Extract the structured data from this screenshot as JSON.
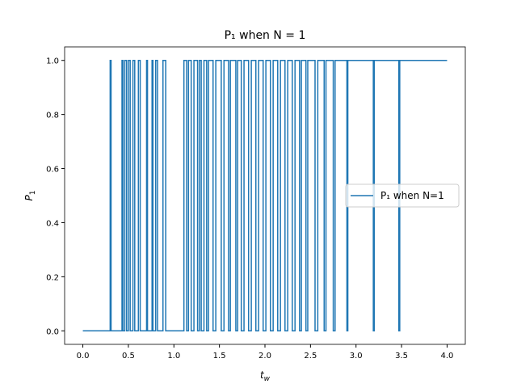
{
  "chart_data": {
    "type": "line",
    "title": "P₁ when N = 1",
    "xlabel": [
      "t",
      "w"
    ],
    "ylabel": [
      "P",
      "1"
    ],
    "xlim": [
      -0.2,
      4.2
    ],
    "ylim": [
      -0.05,
      1.05
    ],
    "xticks": [
      {
        "value": 0,
        "label": "0.0"
      },
      {
        "value": 0.5,
        "label": "0.5"
      },
      {
        "value": 1,
        "label": "1.0"
      },
      {
        "value": 1.5,
        "label": "1.5"
      },
      {
        "value": 2,
        "label": "2.0"
      },
      {
        "value": 2.5,
        "label": "2.5"
      },
      {
        "value": 3,
        "label": "3.0"
      },
      {
        "value": 3.5,
        "label": "3.5"
      },
      {
        "value": 4,
        "label": "4.0"
      }
    ],
    "yticks": [
      {
        "value": 0,
        "label": "0.0"
      },
      {
        "value": 0.2,
        "label": "0.2"
      },
      {
        "value": 0.4,
        "label": "0.4"
      },
      {
        "value": 0.6,
        "label": "0.6"
      },
      {
        "value": 0.8,
        "label": "0.8"
      },
      {
        "value": 1,
        "label": "1.0"
      }
    ],
    "legend": "center right",
    "x": [
      0,
      0.3,
      0.3,
      0.31,
      0.31,
      0.43,
      0.43,
      0.44,
      0.44,
      0.46,
      0.46,
      0.48,
      0.48,
      0.5,
      0.5,
      0.52,
      0.52,
      0.55,
      0.55,
      0.57,
      0.57,
      0.61,
      0.61,
      0.63,
      0.63,
      0.7,
      0.7,
      0.71,
      0.71,
      0.76,
      0.76,
      0.77,
      0.77,
      0.8,
      0.8,
      0.82,
      0.82,
      0.88,
      0.88,
      0.91,
      0.91,
      1.11,
      1.11,
      1.14,
      1.14,
      1.16,
      1.16,
      1.19,
      1.19,
      1.22,
      1.22,
      1.26,
      1.26,
      1.28,
      1.28,
      1.3,
      1.3,
      1.33,
      1.33,
      1.36,
      1.36,
      1.38,
      1.38,
      1.43,
      1.43,
      1.46,
      1.46,
      1.52,
      1.52,
      1.55,
      1.55,
      1.6,
      1.6,
      1.62,
      1.62,
      1.68,
      1.68,
      1.7,
      1.7,
      1.74,
      1.74,
      1.77,
      1.77,
      1.82,
      1.82,
      1.85,
      1.85,
      1.9,
      1.9,
      1.93,
      1.93,
      1.98,
      1.98,
      2.01,
      2.01,
      2.06,
      2.06,
      2.09,
      2.09,
      2.14,
      2.14,
      2.17,
      2.17,
      2.22,
      2.22,
      2.25,
      2.25,
      2.3,
      2.3,
      2.33,
      2.33,
      2.38,
      2.38,
      2.4,
      2.4,
      2.45,
      2.45,
      2.47,
      2.47,
      2.55,
      2.55,
      2.58,
      2.58,
      2.65,
      2.65,
      2.67,
      2.67,
      2.75,
      2.75,
      2.77,
      2.77,
      2.9,
      2.9,
      2.91,
      2.91,
      3.19,
      3.19,
      3.2,
      3.2,
      3.47,
      3.47,
      3.48,
      3.48,
      4.0
    ],
    "series": [
      {
        "name": "P₁ when N=1",
        "color": "#1f77b4",
        "values": [
          0,
          0,
          1,
          1,
          0,
          0,
          1,
          1,
          0,
          0,
          1,
          1,
          0,
          0,
          1,
          1,
          0,
          0,
          1,
          1,
          0,
          0,
          1,
          1,
          0,
          0,
          1,
          1,
          0,
          0,
          1,
          1,
          0,
          0,
          1,
          1,
          0,
          0,
          1,
          1,
          0,
          0,
          1,
          1,
          0,
          0,
          1,
          1,
          0,
          0,
          1,
          1,
          0,
          0,
          1,
          1,
          0,
          0,
          1,
          1,
          0,
          0,
          1,
          1,
          0,
          0,
          1,
          1,
          0,
          0,
          1,
          1,
          0,
          0,
          1,
          1,
          0,
          0,
          1,
          1,
          0,
          0,
          1,
          1,
          0,
          0,
          1,
          1,
          0,
          0,
          1,
          1,
          0,
          0,
          1,
          1,
          0,
          0,
          1,
          1,
          0,
          0,
          1,
          1,
          0,
          0,
          1,
          1,
          0,
          0,
          1,
          1,
          0,
          0,
          1,
          1,
          0,
          0,
          1,
          1,
          0,
          0,
          1,
          1,
          0,
          0,
          1,
          1,
          0,
          0,
          1,
          1,
          0,
          0,
          1,
          1,
          0,
          0,
          1,
          1,
          0,
          0,
          1,
          1
        ]
      }
    ]
  }
}
